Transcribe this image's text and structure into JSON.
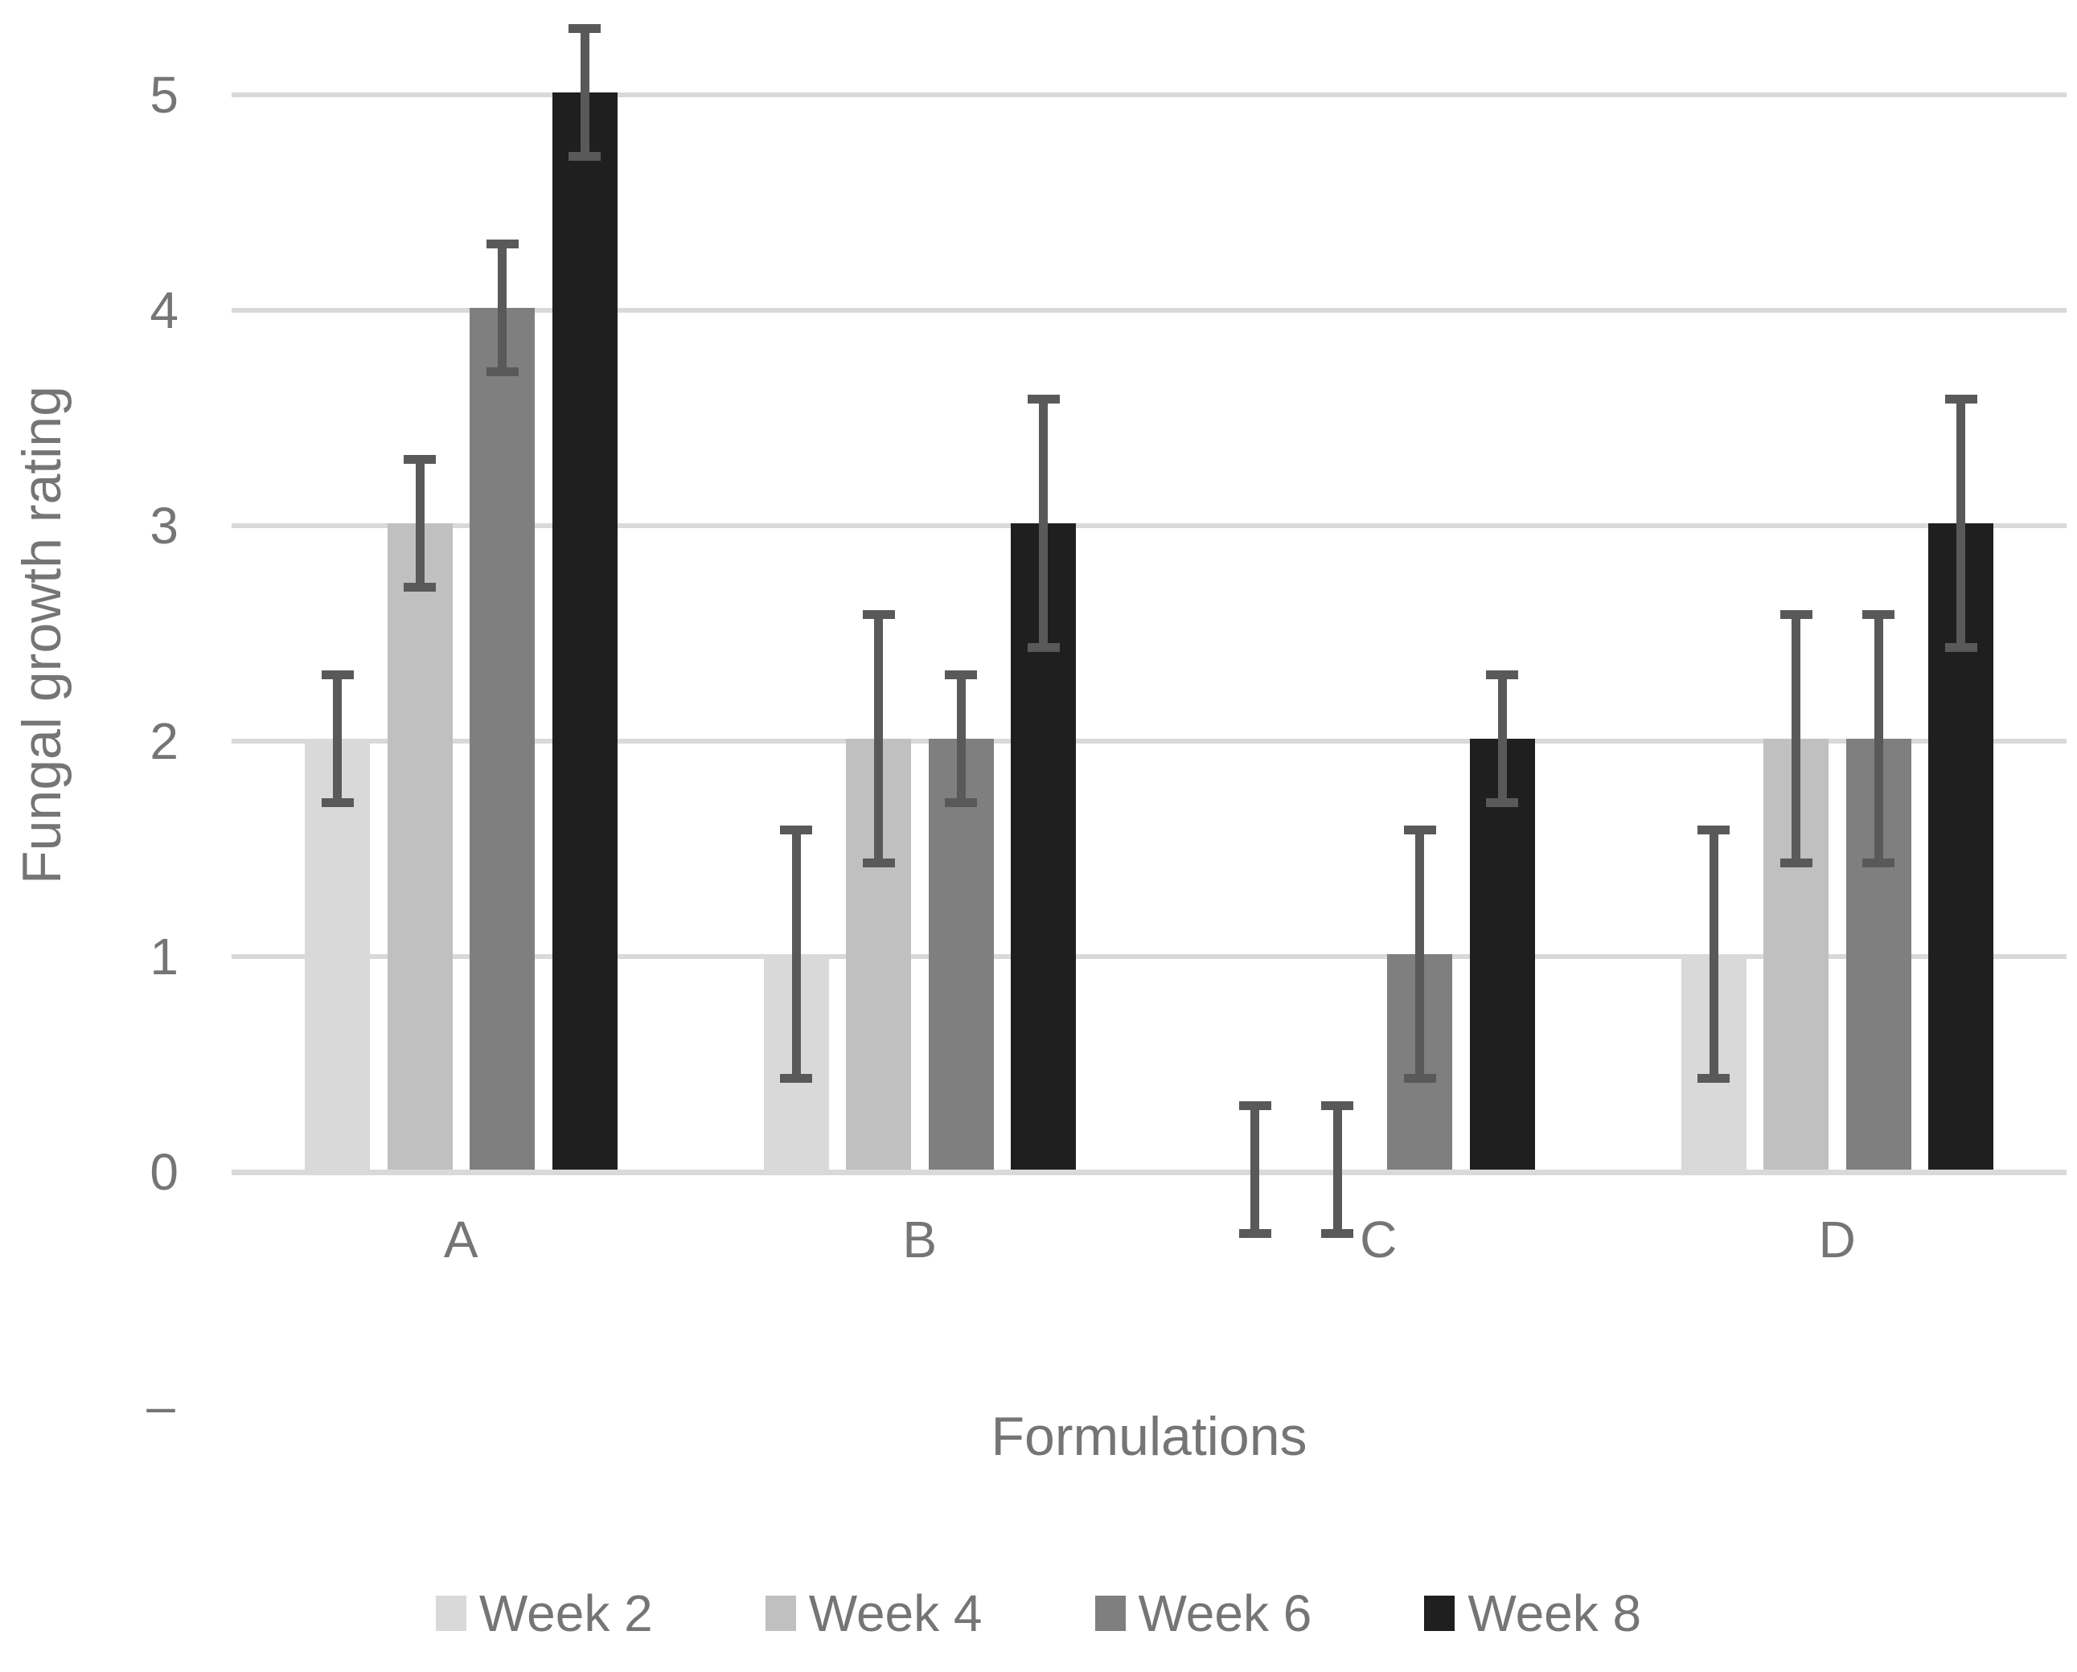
{
  "chart_data": {
    "type": "bar",
    "title": "",
    "categories": [
      "A",
      "B",
      "C",
      "D"
    ],
    "series": [
      {
        "name": "Week 2",
        "color": "#d9d9d9",
        "values": [
          2,
          1,
          0,
          1
        ],
        "errors": [
          0.3,
          0.58,
          0.3,
          0.58
        ]
      },
      {
        "name": "Week 4",
        "color": "#c0c0c0",
        "values": [
          3,
          2,
          0,
          2
        ],
        "errors": [
          0.3,
          0.58,
          0.3,
          0.58
        ]
      },
      {
        "name": "Week 6",
        "color": "#7f7f7f",
        "values": [
          4,
          2,
          1,
          2
        ],
        "errors": [
          0.3,
          0.3,
          0.58,
          0.58
        ]
      },
      {
        "name": "Week 8",
        "color": "#1f1f1f",
        "values": [
          5,
          3,
          2,
          3
        ],
        "errors": [
          0.3,
          0.58,
          0.3,
          0.58
        ]
      }
    ],
    "xlabel": "Formulations",
    "ylabel": "Fungal growth rating",
    "yticks": [
      0,
      1,
      2,
      3,
      4,
      5
    ],
    "ylim": [
      0,
      5.45
    ],
    "grid": true,
    "legend_position": "bottom",
    "stray_axis_dash": "–",
    "colors": {
      "gridline": "#d9d9d9",
      "axis_line": "#d9d9d9",
      "error_bar": "#595959",
      "text": "#757575"
    }
  }
}
